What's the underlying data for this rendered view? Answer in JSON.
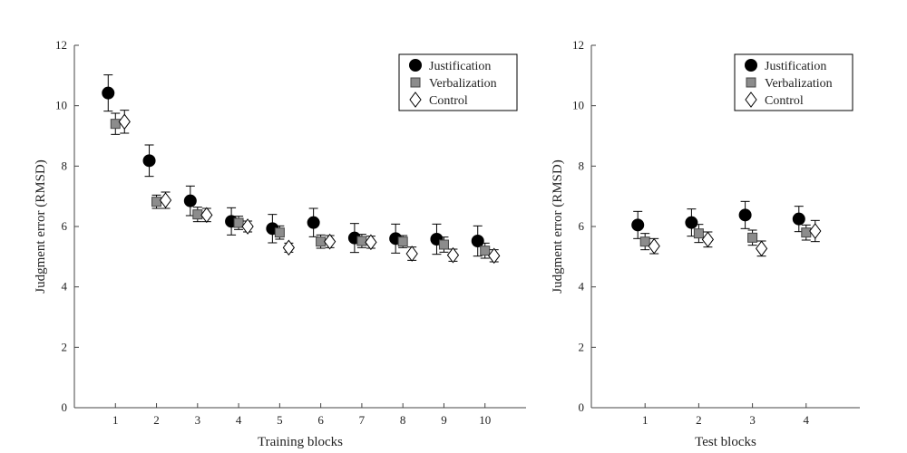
{
  "chart_data": [
    {
      "type": "scatter",
      "title": "",
      "xlabel": "Training blocks",
      "ylabel": "Judgment error (RMSD)",
      "xlim": [
        0,
        11
      ],
      "ylim": [
        0,
        12
      ],
      "xticks": [
        1,
        2,
        3,
        4,
        5,
        6,
        7,
        8,
        9,
        10
      ],
      "yticks": [
        0,
        2,
        4,
        6,
        8,
        10,
        12
      ],
      "legend_position": "top-right",
      "x": [
        1,
        2,
        3,
        4,
        5,
        6,
        7,
        8,
        9,
        10
      ],
      "series": [
        {
          "name": "Justification",
          "marker": "circle",
          "color": "#000000",
          "values": [
            10.42,
            8.18,
            6.85,
            6.17,
            5.93,
            6.13,
            5.62,
            5.6,
            5.58,
            5.52
          ],
          "errors": [
            0.6,
            0.52,
            0.49,
            0.45,
            0.47,
            0.47,
            0.48,
            0.48,
            0.5,
            0.5
          ]
        },
        {
          "name": "Verbalization",
          "marker": "square",
          "color": "#8c8c8c",
          "values": [
            9.4,
            6.82,
            6.4,
            6.12,
            5.8,
            5.5,
            5.52,
            5.5,
            5.4,
            5.2
          ],
          "errors": [
            0.35,
            0.22,
            0.24,
            0.22,
            0.22,
            0.22,
            0.22,
            0.2,
            0.25,
            0.25
          ]
        },
        {
          "name": "Control",
          "marker": "diamond",
          "color": "#ffffff",
          "values": [
            9.47,
            6.87,
            6.38,
            6.0,
            5.3,
            5.5,
            5.48,
            5.1,
            5.05,
            5.03
          ],
          "errors": [
            0.38,
            0.27,
            0.22,
            0.18,
            0.15,
            0.2,
            0.2,
            0.22,
            0.2,
            0.2
          ]
        }
      ]
    },
    {
      "type": "scatter",
      "title": "",
      "xlabel": "Test blocks",
      "ylabel": "Judgment error (RMSD)",
      "xlim": [
        0,
        5
      ],
      "ylim": [
        0,
        12
      ],
      "xticks": [
        1,
        2,
        3,
        4
      ],
      "yticks": [
        0,
        2,
        4,
        6,
        8,
        10,
        12
      ],
      "legend_position": "top-right",
      "x": [
        1,
        2,
        3,
        4
      ],
      "series": [
        {
          "name": "Justification",
          "marker": "circle",
          "color": "#000000",
          "values": [
            6.05,
            6.13,
            6.38,
            6.25
          ],
          "errors": [
            0.45,
            0.45,
            0.45,
            0.42
          ]
        },
        {
          "name": "Verbalization",
          "marker": "square",
          "color": "#8c8c8c",
          "values": [
            5.5,
            5.77,
            5.63,
            5.8
          ],
          "errors": [
            0.27,
            0.3,
            0.25,
            0.25
          ]
        },
        {
          "name": "Control",
          "marker": "diamond",
          "color": "#ffffff",
          "values": [
            5.35,
            5.57,
            5.27,
            5.85
          ],
          "errors": [
            0.25,
            0.25,
            0.25,
            0.35
          ]
        }
      ]
    }
  ]
}
